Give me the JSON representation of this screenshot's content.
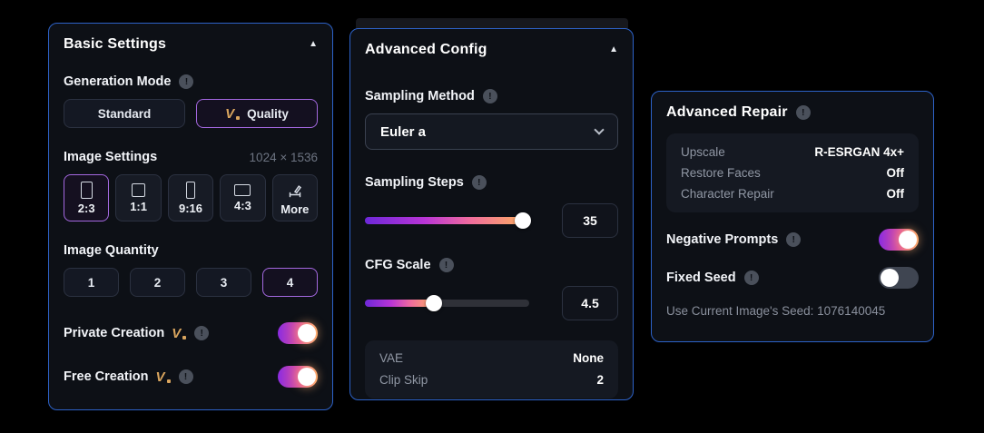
{
  "icons": {
    "info": "!",
    "collapse": "▲",
    "vip": "V"
  },
  "colors": {
    "panel_border": "#2d62c8",
    "selected_purple": "#a468e0",
    "gradient": [
      "#6d28d9",
      "#b935d6",
      "#ef6b9e",
      "#fcab64"
    ],
    "vip_gold": "#d9a55e"
  },
  "basic_settings": {
    "title": "Basic Settings",
    "generation_mode": {
      "label": "Generation Mode",
      "options": [
        {
          "label": "Standard",
          "selected": false
        },
        {
          "label": "Quality",
          "selected": true,
          "vip": true
        }
      ]
    },
    "image_settings": {
      "label": "Image Settings",
      "resolution": "1024 × 1536",
      "ratios": [
        {
          "label": "2:3",
          "selected": true
        },
        {
          "label": "1:1",
          "selected": false
        },
        {
          "label": "9:16",
          "selected": false
        },
        {
          "label": "4:3",
          "selected": false
        },
        {
          "label": "More",
          "selected": false
        }
      ]
    },
    "image_quantity": {
      "label": "Image Quantity",
      "options": [
        {
          "label": "1",
          "selected": false
        },
        {
          "label": "2",
          "selected": false
        },
        {
          "label": "3",
          "selected": false
        },
        {
          "label": "4",
          "selected": true
        }
      ]
    },
    "private_creation": {
      "label": "Private Creation",
      "on": true
    },
    "free_creation": {
      "label": "Free Creation",
      "on": true
    }
  },
  "advanced_config": {
    "title": "Advanced Config",
    "sampling_method": {
      "label": "Sampling Method",
      "value": "Euler a"
    },
    "sampling_steps": {
      "label": "Sampling Steps",
      "value": "35",
      "percent": 96
    },
    "cfg_scale": {
      "label": "CFG Scale",
      "value": "4.5",
      "percent": 42
    },
    "details": [
      {
        "label": "VAE",
        "value": "None"
      },
      {
        "label": "Clip Skip",
        "value": "2"
      }
    ]
  },
  "advanced_repair": {
    "title": "Advanced Repair",
    "details": [
      {
        "label": "Upscale",
        "value": "R-ESRGAN 4x+"
      },
      {
        "label": "Restore Faces",
        "value": "Off"
      },
      {
        "label": "Character Repair",
        "value": "Off"
      }
    ],
    "negative_prompts": {
      "label": "Negative Prompts",
      "on": true
    },
    "fixed_seed": {
      "label": "Fixed Seed",
      "on": false
    },
    "seed_note": "Use Current Image's Seed: 1076140045"
  }
}
